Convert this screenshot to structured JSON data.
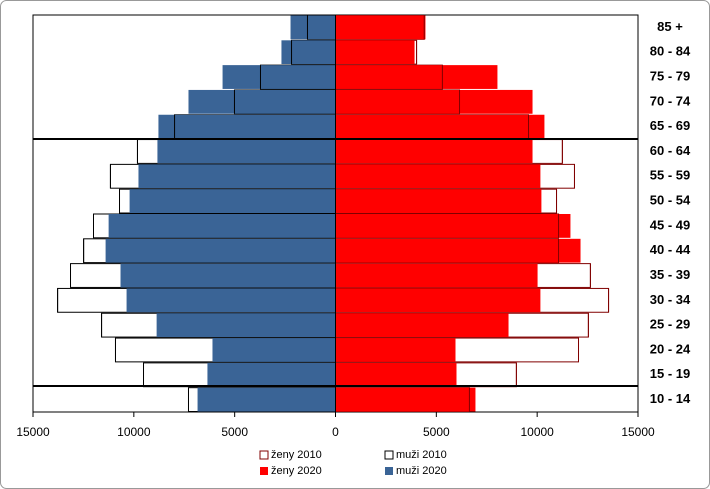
{
  "chart_data": {
    "type": "pyramid",
    "categories": [
      "85 +",
      "80 - 84",
      "75 - 79",
      "70 - 74",
      "65 - 69",
      "60 - 64",
      "55 - 59",
      "50 - 54",
      "45 - 49",
      "40 - 44",
      "35 - 39",
      "30 - 34",
      "25 - 29",
      "20 - 24",
      "15 - 19",
      "10 - 14"
    ],
    "series": [
      {
        "name": "ženy 2010",
        "color": "#ffffff",
        "stroke": "#800000",
        "values": [
          4400,
          4020,
          5300,
          6150,
          9570,
          11250,
          11850,
          10960,
          11060,
          11060,
          12640,
          13540,
          12540,
          12050,
          8970,
          6640
        ]
      },
      {
        "name": "muži 2010",
        "color": "#ffffff",
        "stroke": "#000000",
        "values": [
          -1390,
          -2180,
          -3720,
          -5010,
          -7980,
          -9820,
          -11160,
          -10710,
          -12000,
          -12490,
          -13140,
          -13780,
          -11600,
          -10910,
          -9520,
          -7290
        ]
      },
      {
        "name": "ženy 2020",
        "color": "#ff0000",
        "values": [
          4460,
          3920,
          8030,
          9770,
          10360,
          9770,
          10160,
          10210,
          11650,
          12150,
          10020,
          10160,
          8580,
          5950,
          6000,
          6940
        ]
      },
      {
        "name": "muži 2020",
        "color": "#3a6496",
        "values": [
          -2230,
          -2680,
          -5600,
          -7290,
          -8780,
          -8830,
          -9770,
          -10210,
          -11250,
          -11400,
          -10660,
          -10360,
          -8870,
          -6100,
          -6350,
          -6840
        ]
      }
    ],
    "xlim": [
      -15000,
      15000
    ],
    "xticks": [
      {
        "value": -15000,
        "label": "15000"
      },
      {
        "value": -10000,
        "label": "10000"
      },
      {
        "value": -5000,
        "label": "5000"
      },
      0,
      5000,
      10000,
      15000
    ]
  }
}
